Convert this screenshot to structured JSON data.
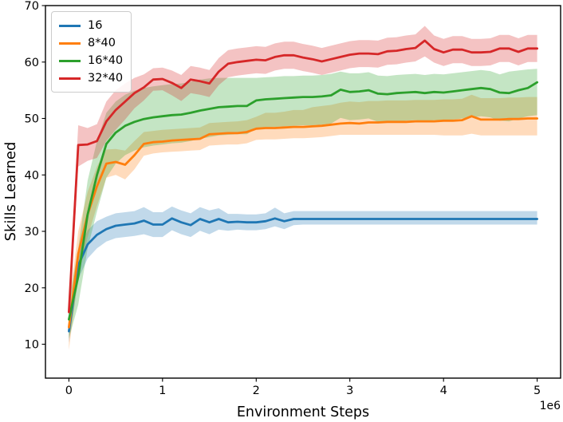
{
  "figure": {
    "kind": "matplotlib-line-chart"
  },
  "chart_data": {
    "type": "line",
    "title": "",
    "xlabel": "Environment Steps",
    "ylabel": "Skills Learned",
    "x_offset_label": "1e6",
    "x_scale": 1000000,
    "xlim": [
      -0.25,
      5.25
    ],
    "ylim": [
      3.9,
      70
    ],
    "xticks": [
      0,
      1,
      2,
      3,
      4,
      5
    ],
    "yticks": [
      10,
      20,
      30,
      40,
      50,
      60,
      70
    ],
    "grid": false,
    "legend_position": "upper left",
    "x": [
      0,
      0.1,
      0.2,
      0.3,
      0.4,
      0.5,
      0.6,
      0.7,
      0.8,
      0.9,
      1,
      1.1,
      1.2,
      1.3,
      1.4,
      1.5,
      1.6,
      1.7,
      1.8,
      1.9,
      2,
      2.1,
      2.2,
      2.3,
      2.4,
      2.5,
      2.6,
      2.7,
      2.8,
      2.9,
      3,
      3.1,
      3.2,
      3.3,
      3.4,
      3.5,
      3.6,
      3.7,
      3.8,
      3.9,
      4,
      4.1,
      4.2,
      4.3,
      4.4,
      4.5,
      4.6,
      4.7,
      4.8,
      4.9,
      5
    ],
    "series": [
      {
        "name": "16",
        "color": "#1f77b4",
        "values": [
          12.3,
          24,
          27.7,
          29.4,
          30.4,
          31,
          31.2,
          31.4,
          31.9,
          31.2,
          31.2,
          32.3,
          31.6,
          31.1,
          32.2,
          31.6,
          32.2,
          31.6,
          31.7,
          31.6,
          31.6,
          31.8,
          32.3,
          31.8,
          32.2,
          32.2,
          32.2,
          32.2,
          32.2,
          32.2,
          32.2,
          32.2,
          32.2,
          32.2,
          32.2,
          32.2,
          32.2,
          32.2,
          32.2,
          32.2,
          32.2,
          32.2,
          32.2,
          32.2,
          32.2,
          32.2,
          32.2,
          32.2,
          32.2,
          32.2,
          32.2
        ],
        "band_low": [
          10.3,
          21.5,
          25.2,
          27,
          28.2,
          28.8,
          29,
          29.2,
          29.5,
          29,
          29,
          30.2,
          29.5,
          29,
          30.1,
          29.5,
          30.3,
          30.1,
          30.3,
          30.2,
          30.2,
          30.4,
          30.9,
          30.4,
          31.1,
          31.2,
          31.2,
          31.2,
          31.2,
          31.2,
          31.2,
          31.2,
          31.2,
          31.2,
          31.2,
          31.2,
          31.2,
          31.2,
          31.2,
          31.2,
          31.2,
          31.2,
          31.2,
          31.2,
          31.2,
          31.2,
          31.2,
          31.2,
          31.2,
          31.2,
          31.2
        ],
        "band_high": [
          14.2,
          26.5,
          30.2,
          31.8,
          32.6,
          33.2,
          33.4,
          33.6,
          34.3,
          33.4,
          33.4,
          34.4,
          33.7,
          33.2,
          34.3,
          33.7,
          34.1,
          33.1,
          33.1,
          33,
          33,
          33.2,
          34.2,
          33.2,
          33.6,
          33.6,
          33.6,
          33.6,
          33.6,
          33.6,
          33.6,
          33.6,
          33.6,
          33.6,
          33.6,
          33.6,
          33.6,
          33.6,
          33.6,
          33.6,
          33.6,
          33.6,
          33.6,
          33.6,
          33.6,
          33.6,
          33.6,
          33.6,
          33.6,
          33.6,
          33.6
        ]
      },
      {
        "name": "8*40",
        "color": "#ff7f0e",
        "values": [
          13,
          26,
          33,
          38,
          42,
          42.3,
          41.8,
          43.5,
          45.5,
          45.8,
          45.9,
          46.1,
          46.2,
          46.3,
          46.4,
          47.2,
          47.3,
          47.4,
          47.4,
          47.6,
          48.2,
          48.3,
          48.3,
          48.4,
          48.5,
          48.5,
          48.6,
          48.7,
          48.9,
          49.1,
          49.2,
          49.1,
          49.3,
          49.3,
          49.4,
          49.4,
          49.4,
          49.5,
          49.5,
          49.5,
          49.6,
          49.6,
          49.7,
          50.4,
          49.8,
          49.8,
          49.8,
          49.9,
          49.9,
          50,
          50
        ],
        "band_low": [
          9,
          22,
          29,
          34.5,
          39.5,
          40,
          39.2,
          41,
          43.4,
          43.8,
          44,
          44.1,
          44.2,
          44.3,
          44.4,
          45.2,
          45.3,
          45.4,
          45.4,
          45.6,
          46.2,
          46.3,
          46.3,
          46.4,
          46.5,
          46.5,
          46.6,
          46.7,
          46.9,
          47.1,
          47.1,
          47.1,
          47.1,
          47.1,
          47.1,
          47.1,
          47.1,
          47.1,
          47.1,
          47.1,
          47,
          47,
          47,
          47.3,
          47,
          47,
          47,
          47,
          47,
          47,
          47
        ],
        "band_high": [
          17,
          30,
          37,
          41.5,
          44.5,
          44.6,
          44.3,
          46,
          47.6,
          47.8,
          48,
          48.1,
          48.2,
          48.3,
          48.4,
          49.2,
          49.3,
          49.4,
          49.5,
          49.7,
          50.3,
          51,
          51,
          51.2,
          51.5,
          51.5,
          52,
          52.2,
          52.4,
          52.8,
          53,
          52.9,
          53.1,
          53.1,
          53.2,
          53.2,
          53.2,
          53.3,
          53.3,
          53.3,
          53.4,
          53.4,
          53.5,
          54.2,
          53.6,
          53.6,
          53.6,
          53.7,
          53.7,
          53.8,
          53.8
        ]
      },
      {
        "name": "16*40",
        "color": "#2ca02c",
        "values": [
          14.4,
          22,
          33,
          40,
          45.5,
          47.5,
          48.7,
          49.4,
          49.9,
          50.2,
          50.4,
          50.6,
          50.7,
          51,
          51.4,
          51.7,
          52,
          52.1,
          52.2,
          52.2,
          53.2,
          53.4,
          53.5,
          53.6,
          53.7,
          53.8,
          53.8,
          53.9,
          54.1,
          55.1,
          54.7,
          54.8,
          55,
          54.4,
          54.3,
          54.5,
          54.6,
          54.7,
          54.5,
          54.7,
          54.6,
          54.8,
          55,
          55.2,
          55.4,
          55.2,
          54.6,
          54.5,
          55,
          55.4,
          56.4
        ],
        "band_low": [
          11,
          17,
          27,
          33.5,
          39.5,
          42,
          43.5,
          44.3,
          44.9,
          45.2,
          45.4,
          45.6,
          45.7,
          46,
          46.4,
          46.7,
          47,
          47.1,
          47.2,
          47.2,
          48.2,
          48.4,
          48.5,
          48.6,
          48.7,
          48.8,
          48.8,
          48.9,
          49.1,
          50.1,
          49.7,
          49.8,
          50,
          49.4,
          49.3,
          49.5,
          49.6,
          49.7,
          49.5,
          49.7,
          49.6,
          49.8,
          50,
          50.2,
          50.4,
          50.2,
          49.6,
          49.5,
          50,
          50.4,
          50.6
        ],
        "band_high": [
          17.5,
          27,
          39,
          46,
          51,
          53,
          54.2,
          54.9,
          55.4,
          55.7,
          55.9,
          56.1,
          56.2,
          56.5,
          56.9,
          57.1,
          57.2,
          57.2,
          57.2,
          57.2,
          57.2,
          57.3,
          57.4,
          57.5,
          57.5,
          57.6,
          57.6,
          57.7,
          57.9,
          58.3,
          58,
          58,
          58.2,
          57.6,
          57.5,
          57.7,
          57.8,
          57.9,
          57.7,
          57.9,
          57.8,
          58,
          58.2,
          58.4,
          58.6,
          58.4,
          57.8,
          58.3,
          58.5,
          58.7,
          58.8
        ]
      },
      {
        "name": "32*40",
        "color": "#d62728",
        "values": [
          15.7,
          45.3,
          45.4,
          46,
          49.5,
          51.5,
          53,
          54.5,
          55.5,
          56.9,
          57,
          56.3,
          55.4,
          56.9,
          56.6,
          56.2,
          58.3,
          59.7,
          60,
          60.2,
          60.4,
          60.3,
          60.9,
          61.2,
          61.2,
          60.8,
          60.5,
          60.1,
          60.5,
          60.9,
          61.3,
          61.5,
          61.5,
          61.4,
          61.9,
          62,
          62.3,
          62.5,
          63.8,
          62.3,
          61.7,
          62.2,
          62.2,
          61.7,
          61.7,
          61.8,
          62.4,
          62.4,
          61.8,
          62.4,
          62.4
        ],
        "band_low": [
          13.2,
          41.5,
          42.5,
          43,
          46,
          48,
          49.8,
          51.8,
          53.2,
          54.9,
          55,
          54.1,
          53.1,
          54.5,
          54.2,
          53.8,
          55.9,
          57.3,
          57.6,
          57.8,
          58,
          57.9,
          58.5,
          58.8,
          58.8,
          58.4,
          58.1,
          57.7,
          58.1,
          58.5,
          58.9,
          59.1,
          59.1,
          59,
          59.5,
          59.6,
          59.9,
          60.1,
          61,
          59.9,
          59.3,
          59.8,
          59.8,
          59.3,
          59.3,
          59.4,
          60,
          60,
          59.4,
          60,
          60
        ],
        "band_high": [
          18.2,
          48.8,
          48.3,
          49,
          53,
          55,
          56.2,
          57.2,
          57.8,
          58.9,
          59,
          58.5,
          57.7,
          59.3,
          59,
          58.6,
          60.7,
          62.1,
          62.4,
          62.6,
          62.8,
          62.7,
          63.3,
          63.6,
          63.6,
          63.2,
          62.9,
          62.5,
          62.9,
          63.3,
          63.7,
          63.9,
          63.9,
          63.8,
          64.3,
          64.4,
          64.7,
          64.9,
          66.4,
          64.7,
          64.1,
          64.6,
          64.6,
          64.1,
          64.1,
          64.2,
          64.8,
          64.8,
          64.2,
          64.8,
          64.8
        ]
      }
    ]
  }
}
